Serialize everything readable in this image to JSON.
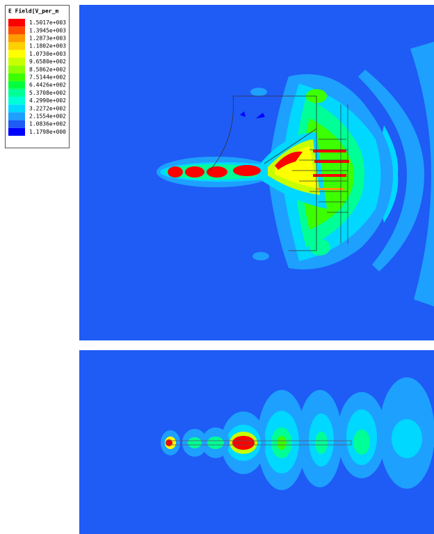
{
  "legend": {
    "title": "E Field[V_per_m",
    "items": [
      {
        "label": "1.5017e+003",
        "color": "#ff0000"
      },
      {
        "label": "1.3945e+003",
        "color": "#ff4a00"
      },
      {
        "label": "1.2873e+003",
        "color": "#ff9a00"
      },
      {
        "label": "1.1802e+003",
        "color": "#ffd000"
      },
      {
        "label": "1.0730e+003",
        "color": "#ffff00"
      },
      {
        "label": "9.6580e+002",
        "color": "#c8ff00"
      },
      {
        "label": "8.5862e+002",
        "color": "#8cff00"
      },
      {
        "label": "7.5144e+002",
        "color": "#3cff00"
      },
      {
        "label": "6.4426e+002",
        "color": "#00ff3c"
      },
      {
        "label": "5.3708e+002",
        "color": "#00ff96"
      },
      {
        "label": "4.2990e+002",
        "color": "#00ffd8"
      },
      {
        "label": "3.2272e+002",
        "color": "#00d8ff"
      },
      {
        "label": "2.1554e+002",
        "color": "#1ea0ff"
      },
      {
        "label": "1.0836e+002",
        "color": "#1e5cf5"
      },
      {
        "label": "1.1798e+000",
        "color": "#0000ff"
      }
    ]
  }
}
